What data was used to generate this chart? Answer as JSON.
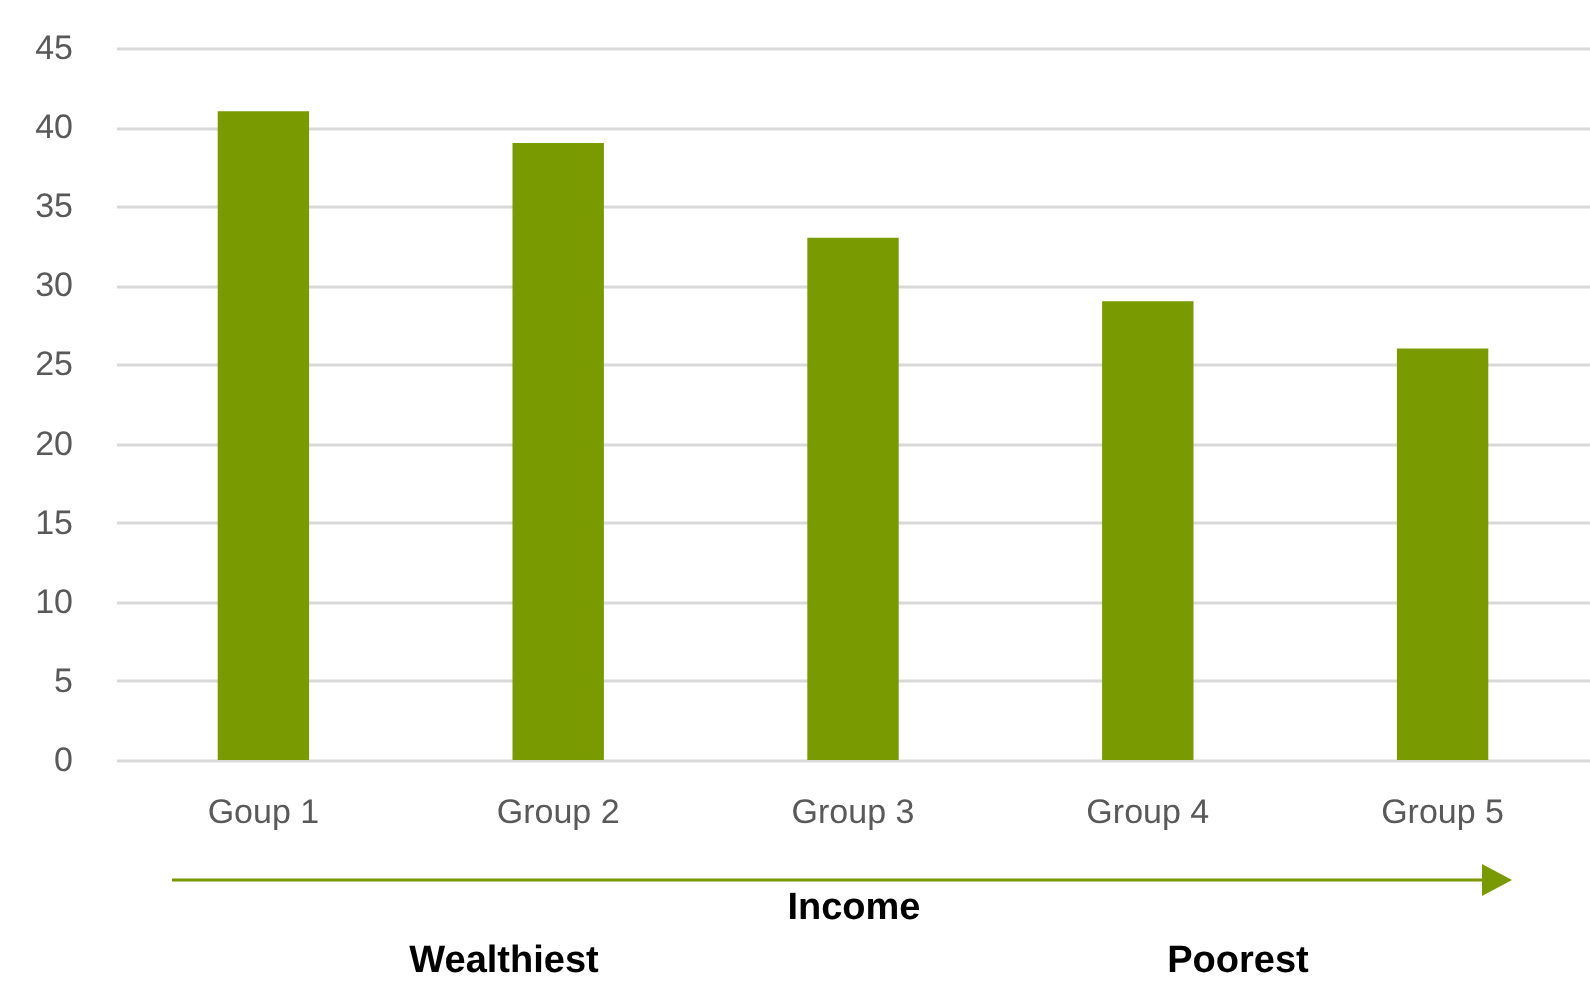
{
  "chart_data": {
    "type": "bar",
    "xlabel": "Income",
    "categories": [
      "Goup 1",
      "Group 2",
      "Group 3",
      "Group 4",
      "Group 5"
    ],
    "values": [
      41,
      39,
      33,
      29,
      26
    ],
    "color": "#7a9a01",
    "ylim": [
      0,
      45
    ],
    "yticks": [
      0,
      5,
      10,
      15,
      20,
      25,
      30,
      35,
      40,
      45
    ],
    "grid": "y",
    "annotations": [
      "Wealthiest",
      "Poorest"
    ]
  }
}
